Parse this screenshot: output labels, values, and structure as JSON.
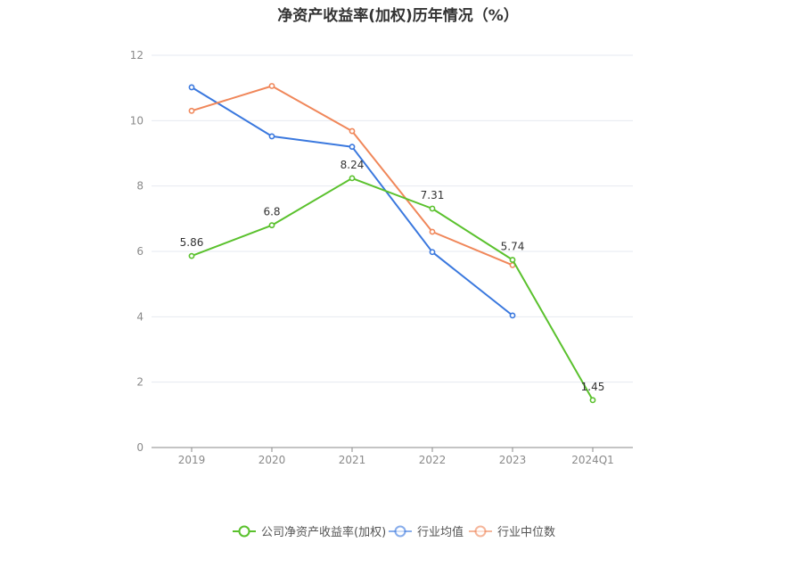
{
  "chart_data": {
    "type": "line",
    "title": "净资产收益率(加权)历年情况（%）",
    "xlabel": "",
    "ylabel": "",
    "categories": [
      "2019",
      "2020",
      "2021",
      "2022",
      "2023",
      "2024Q1"
    ],
    "ylim": [
      0,
      12
    ],
    "yticks": [
      0,
      2,
      4,
      6,
      8,
      10,
      12
    ],
    "grid": true,
    "legend_position": "bottom",
    "series": [
      {
        "name": "公司净资产收益率(加权)",
        "color": "#5ac12d",
        "values": [
          5.86,
          6.8,
          8.24,
          7.31,
          5.74,
          1.45
        ],
        "labels": [
          "5.86",
          "6.8",
          "8.24",
          "7.31",
          "5.74",
          "1.45"
        ],
        "show_labels": true
      },
      {
        "name": "行业均值",
        "color": "#3a78de",
        "values": [
          11.02,
          9.52,
          9.2,
          5.98,
          4.04,
          null
        ],
        "show_labels": false
      },
      {
        "name": "行业中位数",
        "color": "#f0875a",
        "values": [
          10.3,
          11.06,
          9.68,
          6.6,
          5.58,
          null
        ],
        "show_labels": false
      }
    ]
  }
}
